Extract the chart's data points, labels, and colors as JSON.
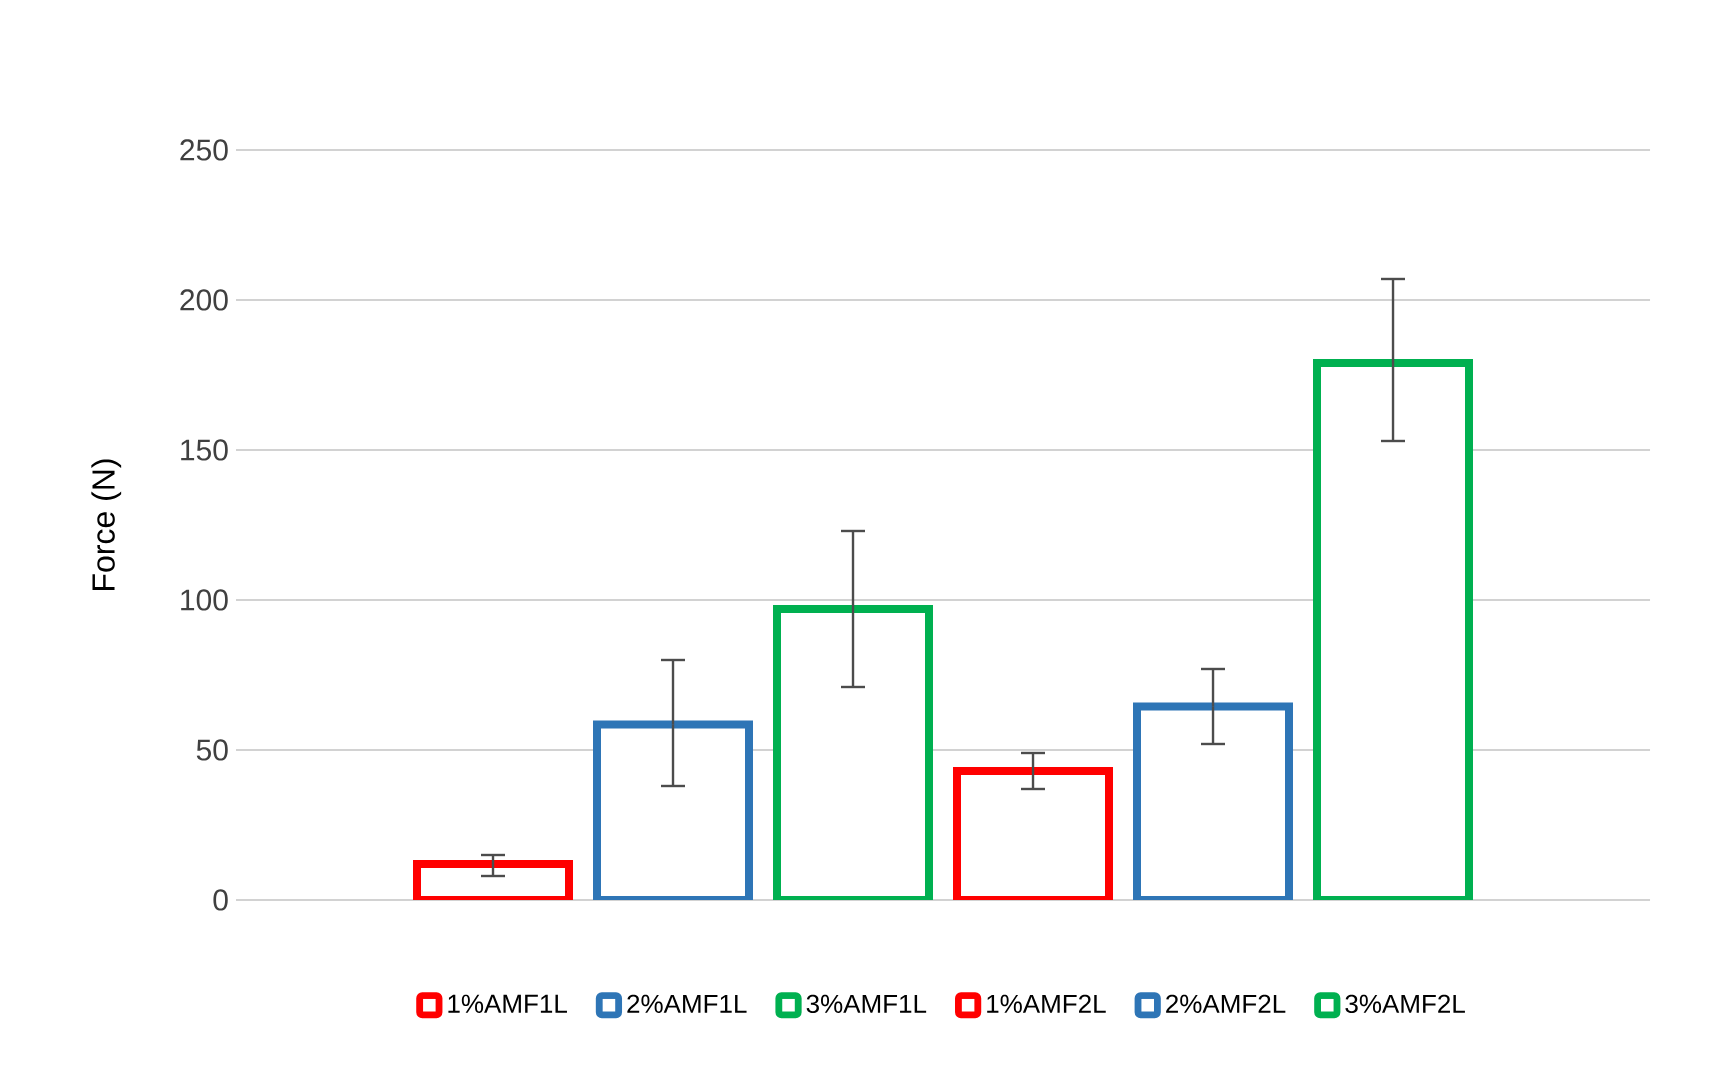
{
  "chart_data": {
    "type": "bar",
    "ylabel": "Force (N)",
    "categories": [
      null
    ],
    "ylim": [
      0,
      250
    ],
    "yticks": [
      0,
      50,
      100,
      150,
      200,
      250
    ],
    "grid": "y",
    "legend": "bottom",
    "marker": "square",
    "series": [
      {
        "name": "1%AMF1L",
        "color": "#ff0000",
        "values": [
          12
        ],
        "errors": [
          [
            8,
            15
          ]
        ]
      },
      {
        "name": "2%AMF1L",
        "color": "#2e75b6",
        "values": [
          58.5
        ],
        "errors": [
          [
            38,
            80
          ]
        ]
      },
      {
        "name": "3%AMF1L",
        "color": "#00b050",
        "values": [
          97
        ],
        "errors": [
          [
            71,
            123
          ]
        ]
      },
      {
        "name": "1%AMF2L",
        "color": "#ff0000",
        "values": [
          43
        ],
        "errors": [
          [
            37,
            49
          ]
        ]
      },
      {
        "name": "2%AMF2L",
        "color": "#2e75b6",
        "values": [
          64.5
        ],
        "errors": [
          [
            52,
            77
          ]
        ]
      },
      {
        "name": "3%AMF2L",
        "color": "#00b050",
        "values": [
          179
        ],
        "errors": [
          [
            153,
            207
          ]
        ]
      }
    ]
  }
}
